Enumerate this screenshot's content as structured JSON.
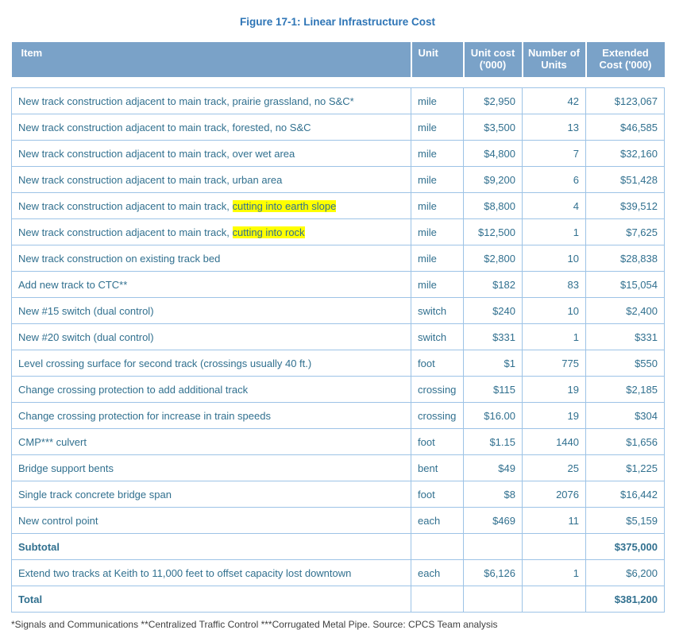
{
  "figure": {
    "title": "Figure 17-1: Linear Infrastructure Cost"
  },
  "table": {
    "columns": [
      "Item",
      "Unit",
      "Unit cost ('000)",
      "Number of Units",
      "Extended Cost ('000)"
    ],
    "rows": [
      {
        "item": "New track construction adjacent to main track, prairie grassland, no S&C*",
        "unit": "mile",
        "unit_cost": "$2,950",
        "units": "42",
        "extended": "$123,067"
      },
      {
        "item": "New track construction adjacent to main track, forested, no S&C",
        "unit": "mile",
        "unit_cost": "$3,500",
        "units": "13",
        "extended": "$46,585"
      },
      {
        "item": "New track construction adjacent to main track, over wet area",
        "unit": "mile",
        "unit_cost": "$4,800",
        "units": "7",
        "extended": "$32,160"
      },
      {
        "item": "New track construction adjacent to main track, urban area",
        "unit": "mile",
        "unit_cost": "$9,200",
        "units": "6",
        "extended": "$51,428"
      },
      {
        "item": "New track construction adjacent to main track, ",
        "item_highlight": "cutting into earth slope",
        "unit": "mile",
        "unit_cost": "$8,800",
        "units": "4",
        "extended": "$39,512"
      },
      {
        "item": "New track construction adjacent to main track, ",
        "item_highlight": "cutting into rock",
        "unit": "mile",
        "unit_cost": "$12,500",
        "units": "1",
        "extended": "$7,625"
      },
      {
        "item": "New track construction on existing track bed",
        "unit": "mile",
        "unit_cost": "$2,800",
        "units": "10",
        "extended": "$28,838"
      },
      {
        "item": "Add new track to CTC**",
        "unit": "mile",
        "unit_cost": "$182",
        "units": "83",
        "extended": "$15,054"
      },
      {
        "item": "New #15 switch (dual control)",
        "unit": "switch",
        "unit_cost": "$240",
        "units": "10",
        "extended": "$2,400"
      },
      {
        "item": "New #20 switch (dual control)",
        "unit": "switch",
        "unit_cost": "$331",
        "units": "1",
        "extended": "$331"
      },
      {
        "item": "Level crossing surface for second track (crossings usually 40 ft.)",
        "unit": "foot",
        "unit_cost": "$1",
        "units": "775",
        "extended": "$550"
      },
      {
        "item": "Change crossing protection to add additional track",
        "unit": "crossing",
        "unit_cost": "$115",
        "units": "19",
        "extended": "$2,185"
      },
      {
        "item": "Change crossing protection for increase in train speeds",
        "unit": "crossing",
        "unit_cost": "$16.00",
        "units": "19",
        "extended": "$304"
      },
      {
        "item": "CMP*** culvert",
        "unit": "foot",
        "unit_cost": "$1.15",
        "units": "1440",
        "extended": "$1,656"
      },
      {
        "item": "Bridge support bents",
        "unit": "bent",
        "unit_cost": "$49",
        "units": "25",
        "extended": "$1,225"
      },
      {
        "item": "Single track concrete bridge span",
        "unit": "foot",
        "unit_cost": "$8",
        "units": "2076",
        "extended": "$16,442"
      },
      {
        "item": "New control point",
        "unit": "each",
        "unit_cost": "$469",
        "units": "11",
        "extended": "$5,159"
      },
      {
        "item": "Subtotal",
        "bold": true,
        "unit": "",
        "unit_cost": "",
        "units": "",
        "extended": "$375,000"
      },
      {
        "item": "Extend two tracks at Keith to 11,000 feet to offset capacity lost downtown",
        "unit": "each",
        "unit_cost": "$6,126",
        "units": "1",
        "extended": "$6,200"
      },
      {
        "item": "Total",
        "bold": true,
        "unit": "",
        "unit_cost": "",
        "units": "",
        "extended": "$381,200"
      }
    ]
  },
  "footnote": "*Signals and Communications **Centralized Traffic Control ***Corrugated Metal Pipe. Source: CPCS Team analysis",
  "colors": {
    "title": "#2E75B6",
    "header_bg": "#7AA2C8",
    "border": "#9DC3E6",
    "cell_text": "#31708F",
    "highlight": "#FFFF00",
    "footnote": "#404040"
  }
}
